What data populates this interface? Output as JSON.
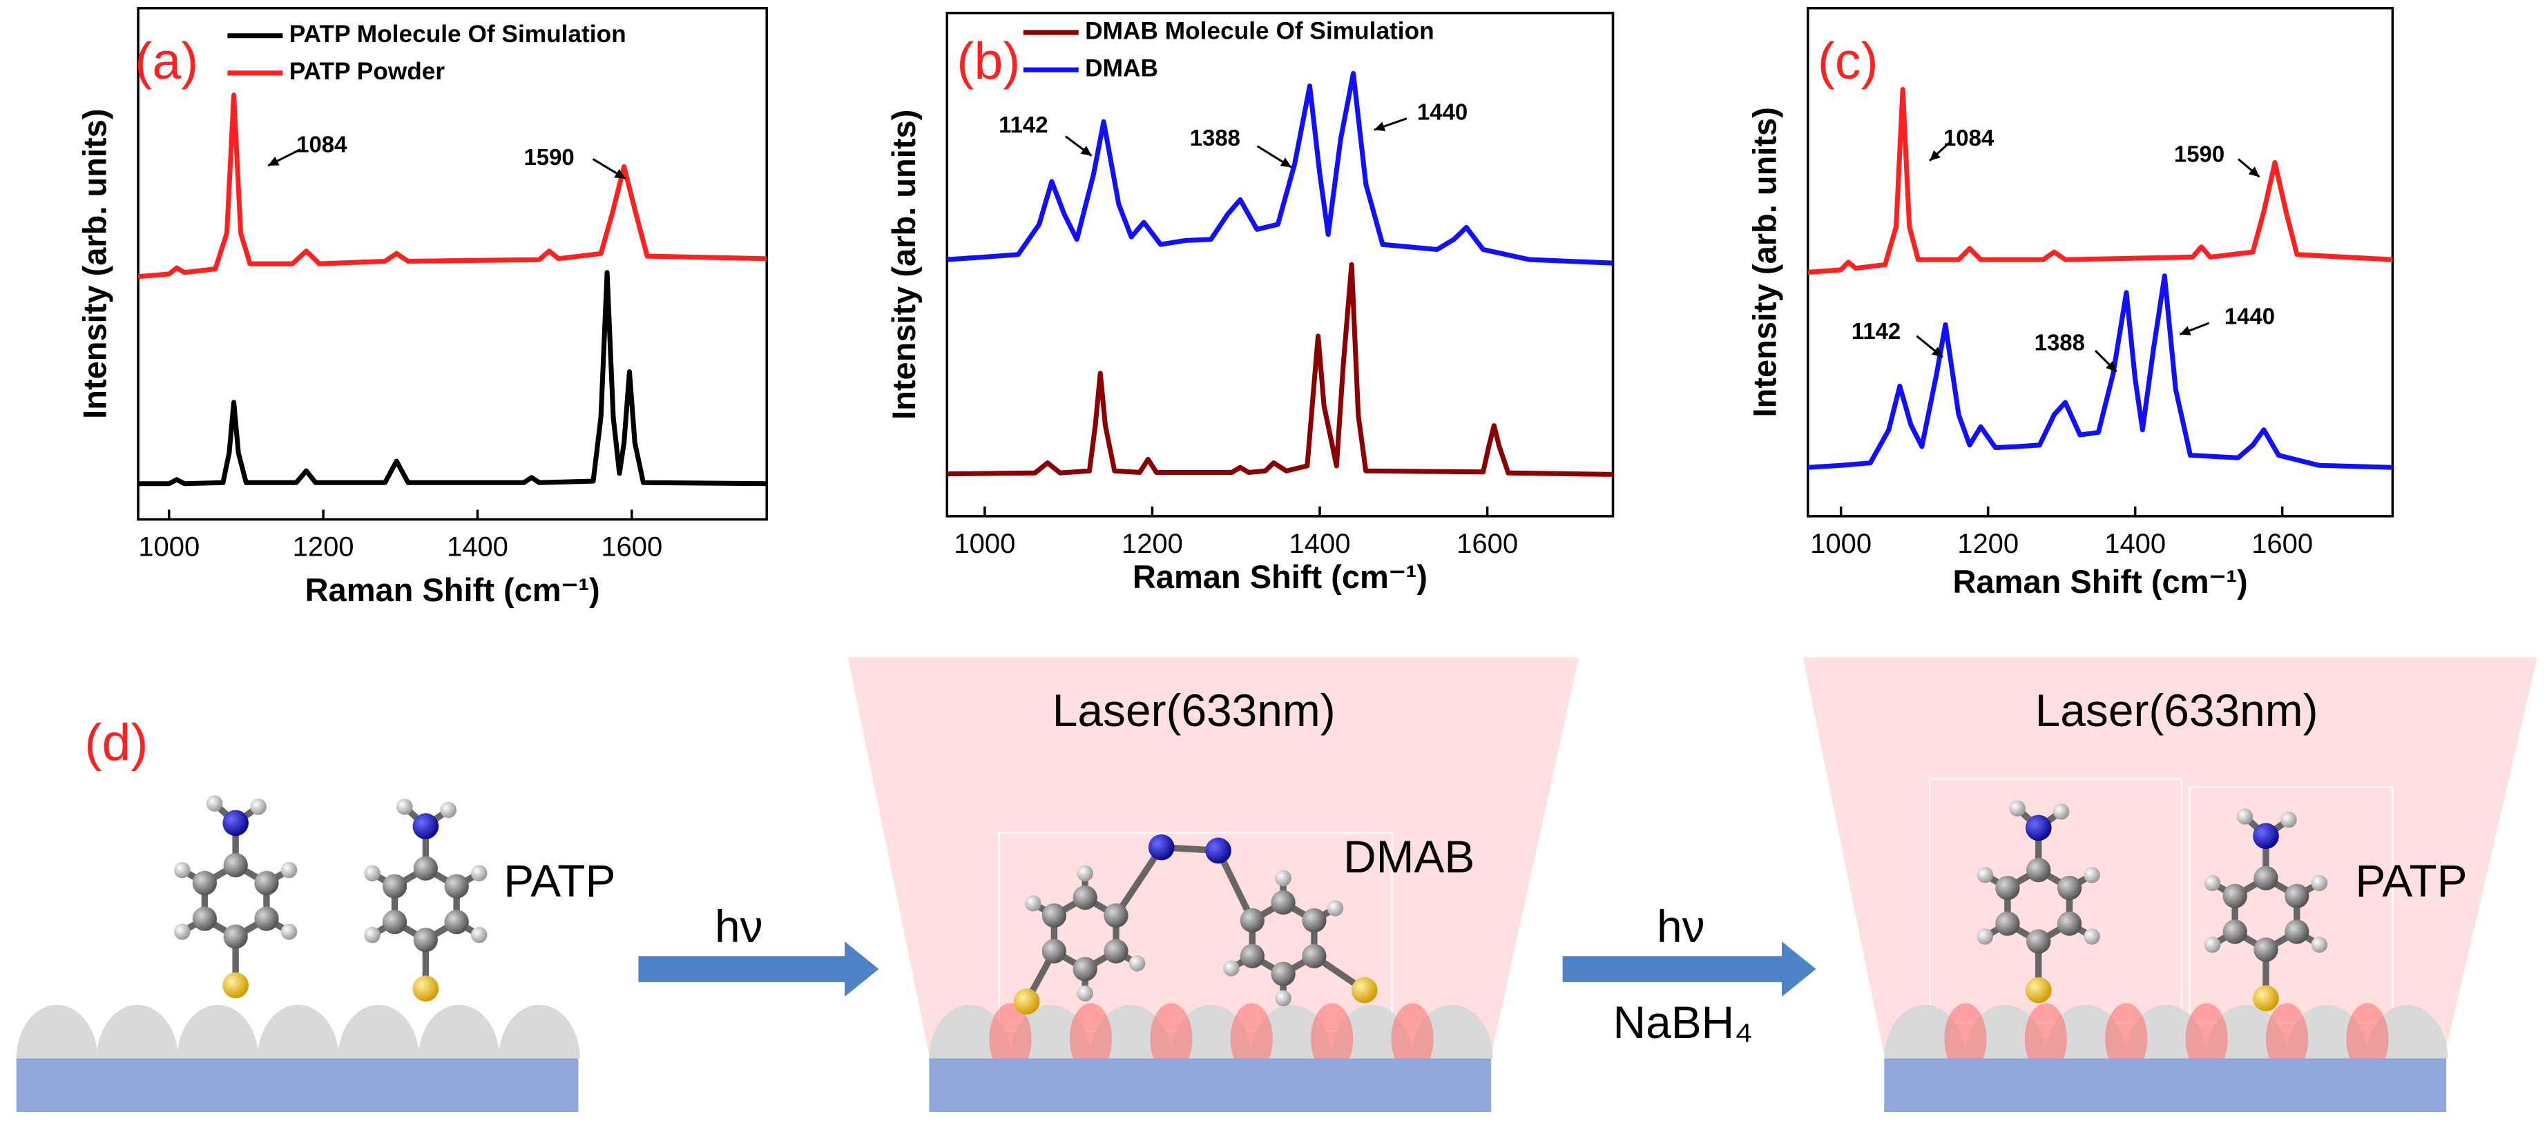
{
  "chart_data": [
    {
      "type": "line",
      "label": "(a)",
      "xlabel": "Raman Shift (cm⁻¹)",
      "ylabel": "Intensity (arb. units)",
      "xlim": [
        960,
        1775
      ],
      "ylim": [
        0,
        100
      ],
      "xticks": [
        1000,
        1200,
        1400,
        1600
      ],
      "legend": true,
      "series": [
        {
          "name": "PATP Molecule Of Simulation",
          "color": "#000000",
          "x": [
            960,
            1000,
            1010,
            1020,
            1070,
            1078,
            1084,
            1090,
            1100,
            1165,
            1178,
            1190,
            1280,
            1295,
            1310,
            1460,
            1470,
            1480,
            1550,
            1560,
            1568,
            1576,
            1584,
            1590,
            1597,
            1604,
            1615,
            1775
          ],
          "values": [
            7,
            7,
            7.8,
            7,
            7.2,
            13,
            22.9,
            13,
            7.2,
            7.2,
            9.5,
            7.2,
            7.2,
            11.4,
            7.2,
            7.2,
            8.2,
            7.2,
            7.5,
            20,
            48.3,
            20,
            9,
            15,
            28.9,
            15,
            7.2,
            7
          ]
        },
        {
          "name": "PATP Powder",
          "color": "#ff2020",
          "x": [
            960,
            1000,
            1010,
            1020,
            1060,
            1075,
            1084,
            1093,
            1105,
            1160,
            1178,
            1195,
            1280,
            1295,
            1310,
            1480,
            1493,
            1505,
            1560,
            1575,
            1590,
            1605,
            1620,
            1775
          ],
          "values": [
            47.5,
            48,
            49.2,
            48.3,
            49,
            56,
            83,
            56,
            50,
            50,
            52.5,
            50,
            50.5,
            52,
            50.5,
            50.8,
            52.5,
            51,
            52,
            60,
            69,
            60,
            51.5,
            51
          ]
        }
      ],
      "annotations": [
        "1084",
        "1590"
      ]
    },
    {
      "type": "line",
      "label": "(b)",
      "xlabel": "Raman Shift (cm⁻¹)",
      "ylabel": "Intensity (arb. units)",
      "xlim": [
        955,
        1750
      ],
      "ylim": [
        0,
        100
      ],
      "xticks": [
        1000,
        1200,
        1400,
        1600
      ],
      "legend": true,
      "series": [
        {
          "name": "DMAB Molecule Of Simulation",
          "color": "#8b0000",
          "x": [
            955,
            1060,
            1075,
            1090,
            1125,
            1132,
            1138,
            1144,
            1155,
            1185,
            1195,
            1205,
            1295,
            1305,
            1315,
            1335,
            1345,
            1360,
            1385,
            1392,
            1398,
            1405,
            1420,
            1428,
            1438,
            1446,
            1455,
            1595,
            1602,
            1608,
            1614,
            1625,
            1750
          ],
          "values": [
            8.4,
            8.6,
            10.6,
            8.6,
            9,
            18,
            28.4,
            18,
            9,
            8.7,
            11.3,
            8.7,
            8.7,
            9.7,
            8.7,
            9,
            10.6,
            9,
            10,
            24,
            35.8,
            22,
            10,
            30,
            50,
            20,
            9,
            8.8,
            14,
            18,
            14,
            8.6,
            8.3
          ]
        },
        {
          "name": "DMAB",
          "color": "#1010ff",
          "x": [
            955,
            1000,
            1040,
            1065,
            1080,
            1095,
            1110,
            1130,
            1142,
            1160,
            1175,
            1190,
            1210,
            1240,
            1270,
            1290,
            1305,
            1325,
            1350,
            1370,
            1388,
            1400,
            1410,
            1425,
            1440,
            1455,
            1475,
            1540,
            1560,
            1575,
            1595,
            1650,
            1750
          ],
          "values": [
            51,
            51.5,
            52,
            58,
            66.5,
            60,
            55,
            68,
            78.4,
            62,
            55.5,
            58.4,
            54,
            54.8,
            55,
            60,
            62.9,
            57,
            58,
            70,
            85.5,
            68,
            56,
            75,
            88,
            66,
            54,
            53,
            55,
            57.4,
            53,
            51,
            50.3
          ]
        }
      ],
      "annotations": [
        "1142",
        "1388",
        "1440"
      ]
    },
    {
      "type": "line",
      "label": "(c)",
      "xlabel": "Raman Shift (cm⁻¹)",
      "ylabel": "Intensity (arb. units)",
      "xlim": [
        955,
        1750
      ],
      "ylim": [
        0,
        100
      ],
      "xticks": [
        1000,
        1200,
        1400,
        1600
      ],
      "legend": false,
      "series": [
        {
          "name": "PATP",
          "color": "#ff2020",
          "x": [
            955,
            1000,
            1010,
            1020,
            1060,
            1075,
            1084,
            1093,
            1105,
            1160,
            1175,
            1190,
            1275,
            1290,
            1305,
            1478,
            1490,
            1502,
            1560,
            1575,
            1590,
            1605,
            1620,
            1750
          ],
          "values": [
            48,
            48.5,
            50,
            48.8,
            49.5,
            57,
            84,
            57,
            50.5,
            50.5,
            52.7,
            50.5,
            50.5,
            52,
            50.5,
            51,
            53,
            51,
            52,
            60,
            69.6,
            60,
            51.5,
            50.5
          ]
        },
        {
          "name": "DMAB",
          "color": "#1010ff",
          "x": [
            955,
            1000,
            1040,
            1065,
            1080,
            1095,
            1110,
            1130,
            1142,
            1160,
            1175,
            1190,
            1210,
            1240,
            1270,
            1290,
            1305,
            1325,
            1350,
            1370,
            1388,
            1400,
            1410,
            1425,
            1440,
            1455,
            1475,
            1540,
            1560,
            1575,
            1595,
            1650,
            1750
          ],
          "values": [
            9.6,
            10,
            10.5,
            17,
            25.6,
            18,
            13.7,
            28,
            37.7,
            20,
            14,
            17.6,
            13.5,
            13.7,
            14,
            20,
            22.4,
            16,
            16.5,
            28,
            44,
            27,
            17,
            33,
            47.3,
            25,
            12,
            11.5,
            14,
            17,
            12,
            10,
            9.6
          ]
        }
      ],
      "annotations": [
        "1084",
        "1590",
        "1142",
        "1388",
        "1440"
      ]
    }
  ],
  "diagram": {
    "label": "(d)",
    "molecule_1": "PATP",
    "light_1": "hν",
    "laser_1": "Laser(633nm)",
    "product": "DMAB",
    "light_2": "hν",
    "reagent": "NaBH₄",
    "laser_2": "Laser(633nm)",
    "molecule_2": "PATP"
  }
}
